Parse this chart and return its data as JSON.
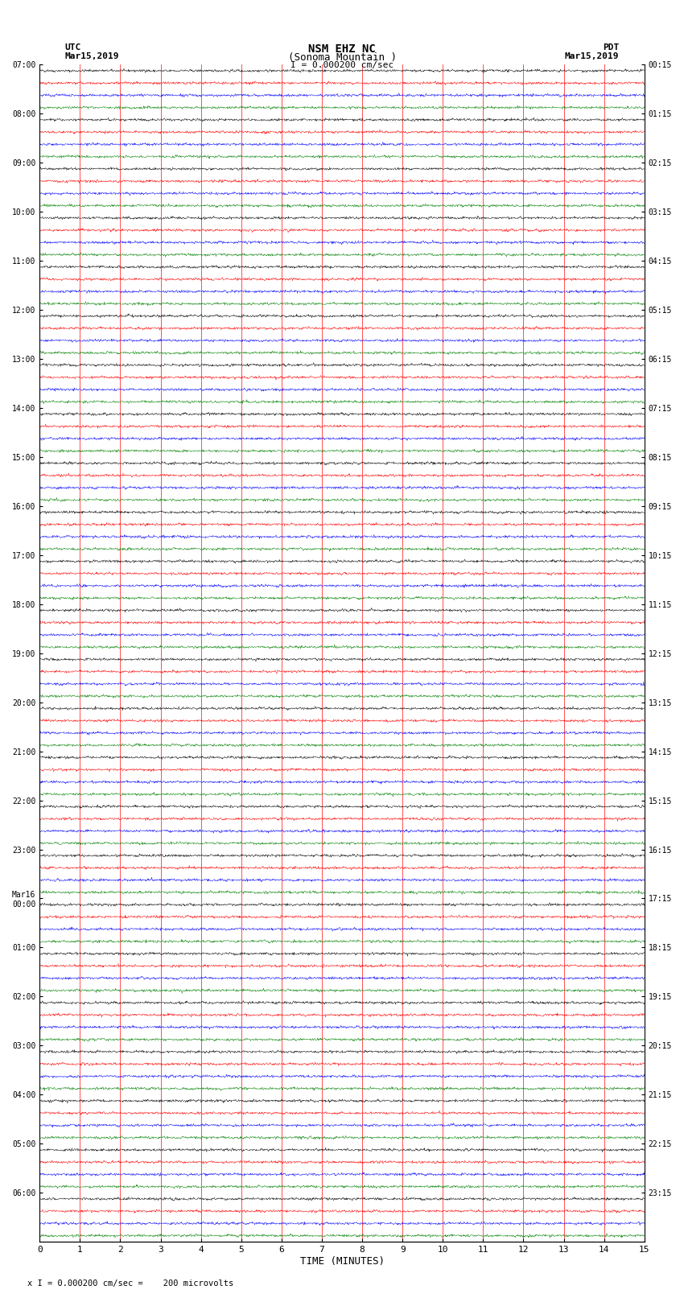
{
  "title_line1": "NSM EHZ NC",
  "title_line2": "(Sonoma Mountain )",
  "scale_label": "I = 0.000200 cm/sec",
  "left_header1": "UTC",
  "left_header2": "Mar15,2019",
  "right_header1": "PDT",
  "right_header2": "Mar15,2019",
  "bottom_label": "TIME (MINUTES)",
  "footnote": "x I = 0.000200 cm/sec =    200 microvolts",
  "utc_labels": [
    "07:00",
    "08:00",
    "09:00",
    "10:00",
    "11:00",
    "12:00",
    "13:00",
    "14:00",
    "15:00",
    "16:00",
    "17:00",
    "18:00",
    "19:00",
    "20:00",
    "21:00",
    "22:00",
    "23:00",
    "Mar16\n00:00",
    "01:00",
    "02:00",
    "03:00",
    "04:00",
    "05:00",
    "06:00"
  ],
  "pdt_labels": [
    "00:15",
    "01:15",
    "02:15",
    "03:15",
    "04:15",
    "05:15",
    "06:15",
    "07:15",
    "08:15",
    "09:15",
    "10:15",
    "11:15",
    "12:15",
    "13:15",
    "14:15",
    "15:15",
    "16:15",
    "17:15",
    "18:15",
    "19:15",
    "20:15",
    "21:15",
    "22:15",
    "23:15"
  ],
  "n_hours": 24,
  "n_traces_per_hour": 4,
  "trace_colors": [
    "black",
    "red",
    "blue",
    "green"
  ],
  "x_min": 0,
  "x_max": 15,
  "bg_color": "#ffffff",
  "grid_color": "#ff0000",
  "noise_seed": 42,
  "fig_width": 8.5,
  "fig_height": 16.13
}
